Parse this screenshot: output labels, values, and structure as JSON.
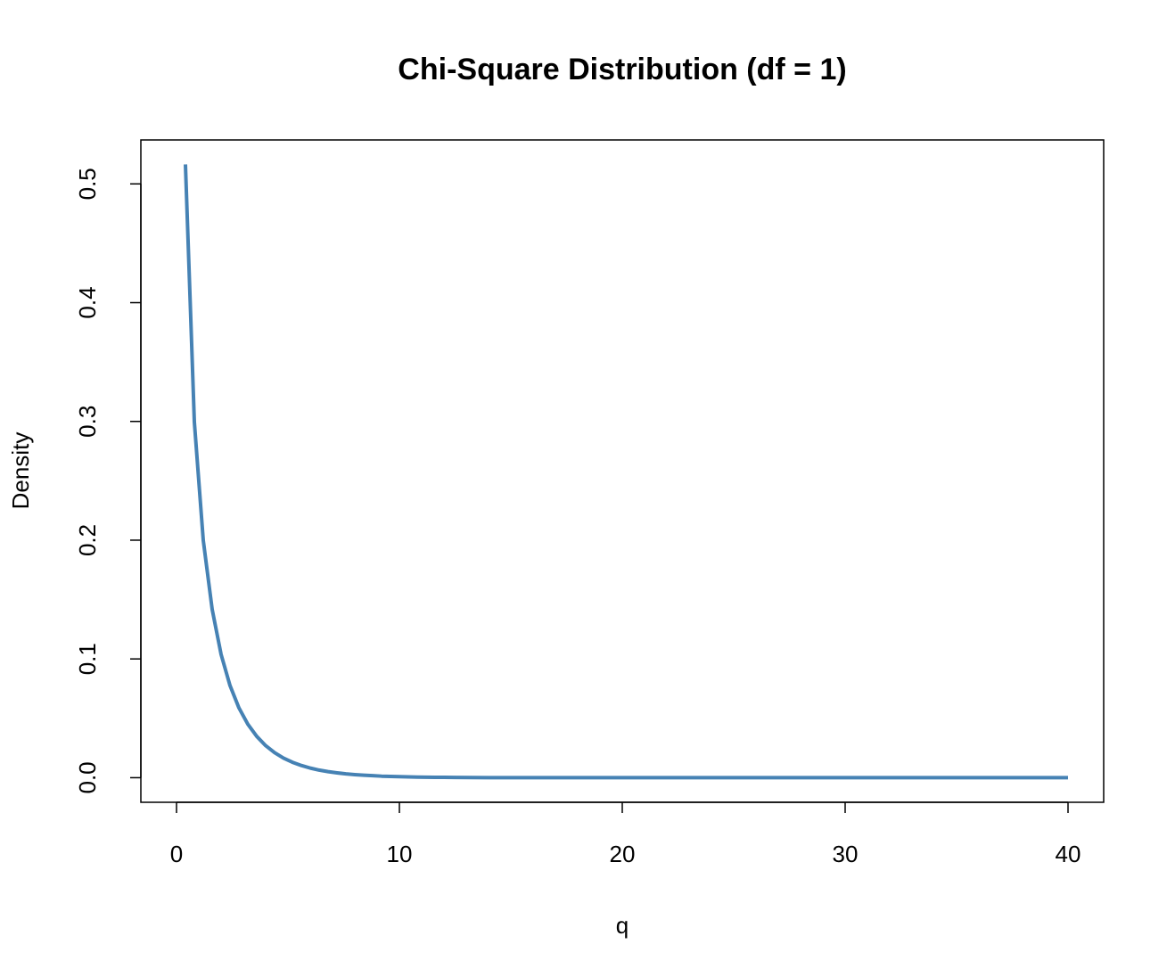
{
  "chart_data": {
    "type": "line",
    "title": "Chi-Square Distribution (df = 1)",
    "x_label": "q",
    "y_label": "Density",
    "x": [
      0.4,
      0.8,
      1.2,
      1.6,
      2.0,
      2.4,
      2.8,
      3.2,
      3.6,
      4.0,
      4.4,
      4.8,
      5.2,
      5.6,
      6.0,
      6.4,
      6.8,
      7.2,
      7.6,
      8.0,
      8.4,
      8.8,
      9.2,
      9.6,
      10.0,
      10.4,
      10.8,
      11.2,
      11.6,
      12.0,
      14,
      16,
      18,
      20,
      22,
      24,
      26,
      28,
      30,
      32,
      34,
      36,
      38,
      40
    ],
    "series": [
      {
        "color": "#4682b4",
        "values": [
          0.5164,
          0.2995,
          0.1999,
          0.1417,
          0.1038,
          0.0776,
          0.0588,
          0.045,
          0.0348,
          0.027,
          0.0211,
          0.0165,
          0.013,
          0.0103,
          0.0081,
          0.0064,
          0.0051,
          0.0041,
          0.0032,
          0.0026,
          0.0021,
          0.0017,
          0.0013,
          0.0011,
          0.00085,
          0.00068,
          0.00055,
          0.00044,
          0.00035,
          0.00029,
          0,
          0,
          0,
          0,
          0,
          0,
          0,
          0,
          0,
          0,
          0,
          0,
          0,
          0
        ]
      }
    ],
    "xlim": [
      -1.6,
      41.6
    ],
    "ylim": [
      -0.0207,
      0.537
    ],
    "xticks": [
      0,
      10,
      20,
      30,
      40
    ],
    "yticks": [
      {
        "value": 0,
        "label": "0.0"
      },
      0.1,
      0.2,
      0.3,
      0.4,
      0.5
    ],
    "grid": false
  }
}
